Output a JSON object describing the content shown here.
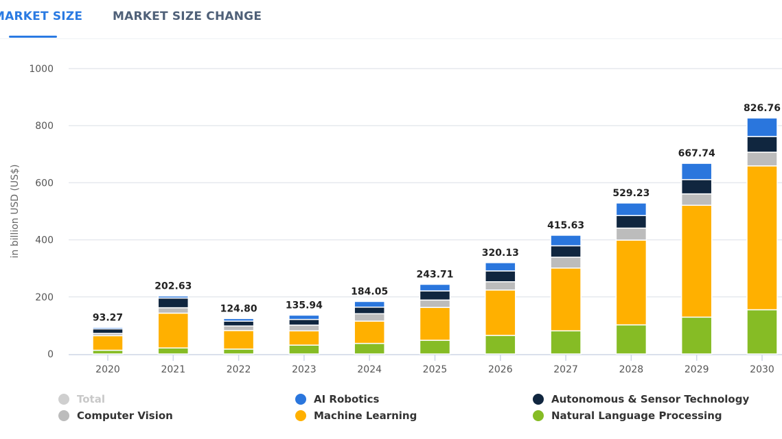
{
  "tabs": [
    {
      "label": "MARKET SIZE",
      "active": true
    },
    {
      "label": "MARKET SIZE CHANGE",
      "active": false
    }
  ],
  "chart_data": {
    "type": "bar",
    "stacked": true,
    "ylabel": "in billion USD (US$)",
    "ylim": [
      0,
      1000
    ],
    "yticks": [
      0,
      200,
      400,
      600,
      800,
      1000
    ],
    "grid": true,
    "legend_position": "bottom",
    "categories": [
      "2020",
      "2021",
      "2022",
      "2023",
      "2024",
      "2025",
      "2026",
      "2027",
      "2028",
      "2029",
      "2030"
    ],
    "totals": [
      "93.27",
      "202.63",
      "124.80",
      "135.94",
      "184.05",
      "243.71",
      "320.13",
      "415.63",
      "529.23",
      "667.74",
      "826.76"
    ],
    "series": [
      {
        "name": "Natural Language Processing",
        "color": "#86bc25",
        "values": [
          13,
          21,
          17,
          31,
          37,
          48,
          65,
          81,
          102,
          129,
          155
        ]
      },
      {
        "name": "Machine Learning",
        "color": "#ffb000",
        "values": [
          51,
          122,
          65,
          50,
          78,
          115,
          159,
          220,
          297,
          392,
          504
        ]
      },
      {
        "name": "Computer Vision",
        "color": "#bcbcbc",
        "values": [
          8,
          19,
          16,
          20,
          26,
          26,
          29,
          38,
          42,
          40,
          48
        ]
      },
      {
        "name": "Autonomous & Sensor Technology",
        "color": "#10263f",
        "values": [
          16,
          34,
          17,
          20,
          23,
          32,
          38,
          40,
          44,
          50,
          55
        ]
      },
      {
        "name": "AI Robotics",
        "color": "#2a76dd",
        "values": [
          5,
          7,
          9,
          15,
          20,
          23,
          29,
          37,
          44,
          57,
          65
        ]
      }
    ],
    "legend": [
      {
        "name": "Total",
        "color": "#cfcfcf",
        "disabled": true
      },
      {
        "name": "AI Robotics",
        "color": "#2a76dd"
      },
      {
        "name": "Autonomous & Sensor Technology",
        "color": "#10263f"
      },
      {
        "name": "Computer Vision",
        "color": "#bcbcbc"
      },
      {
        "name": "Machine Learning",
        "color": "#ffb000"
      },
      {
        "name": "Natural Language Processing",
        "color": "#86bc25"
      }
    ]
  }
}
